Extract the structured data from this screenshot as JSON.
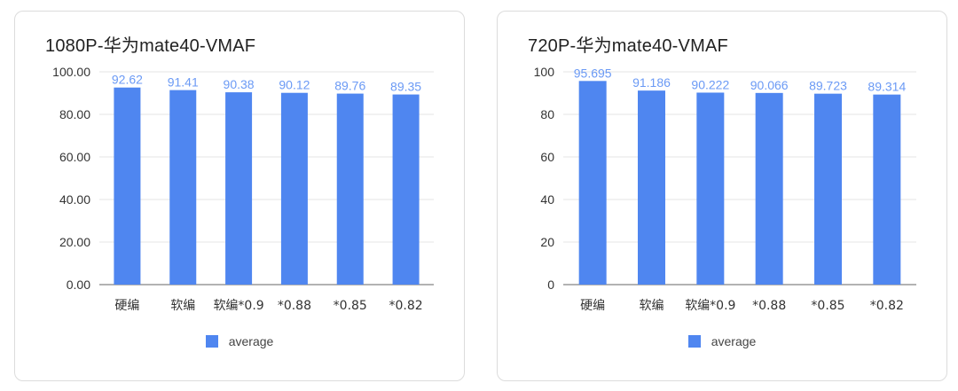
{
  "colors": {
    "bar": "#4f86f0",
    "value_label": "#6b9af5",
    "grid": "#e6e6e6",
    "axis": "#666666",
    "tick": "#333333"
  },
  "chart_data": [
    {
      "type": "bar",
      "title": "1080P-华为mate40-VMAF",
      "categories": [
        "硬编",
        "软编",
        "软编*0.9",
        "*0.88",
        "*0.85",
        "*0.82"
      ],
      "series": [
        {
          "name": "average",
          "values": [
            92.62,
            91.41,
            90.38,
            90.12,
            89.76,
            89.35
          ]
        }
      ],
      "value_labels": [
        "92.62",
        "91.41",
        "90.38",
        "90.12",
        "89.76",
        "89.35"
      ],
      "yticks": [
        "0.00",
        "20.00",
        "40.00",
        "60.00",
        "80.00",
        "100.00"
      ],
      "ylim": [
        0,
        100
      ],
      "grid": true,
      "legend_position": "bottom"
    },
    {
      "type": "bar",
      "title": "720P-华为mate40-VMAF",
      "categories": [
        "硬编",
        "软编",
        "软编*0.9",
        "*0.88",
        "*0.85",
        "*0.82"
      ],
      "series": [
        {
          "name": "average",
          "values": [
            95.695,
            91.186,
            90.222,
            90.066,
            89.723,
            89.314
          ]
        }
      ],
      "value_labels": [
        "95.695",
        "91.186",
        "90.222",
        "90.066",
        "89.723",
        "89.314"
      ],
      "yticks": [
        "0",
        "20",
        "40",
        "60",
        "80",
        "100"
      ],
      "ylim": [
        0,
        100
      ],
      "grid": true,
      "legend_position": "bottom"
    }
  ]
}
